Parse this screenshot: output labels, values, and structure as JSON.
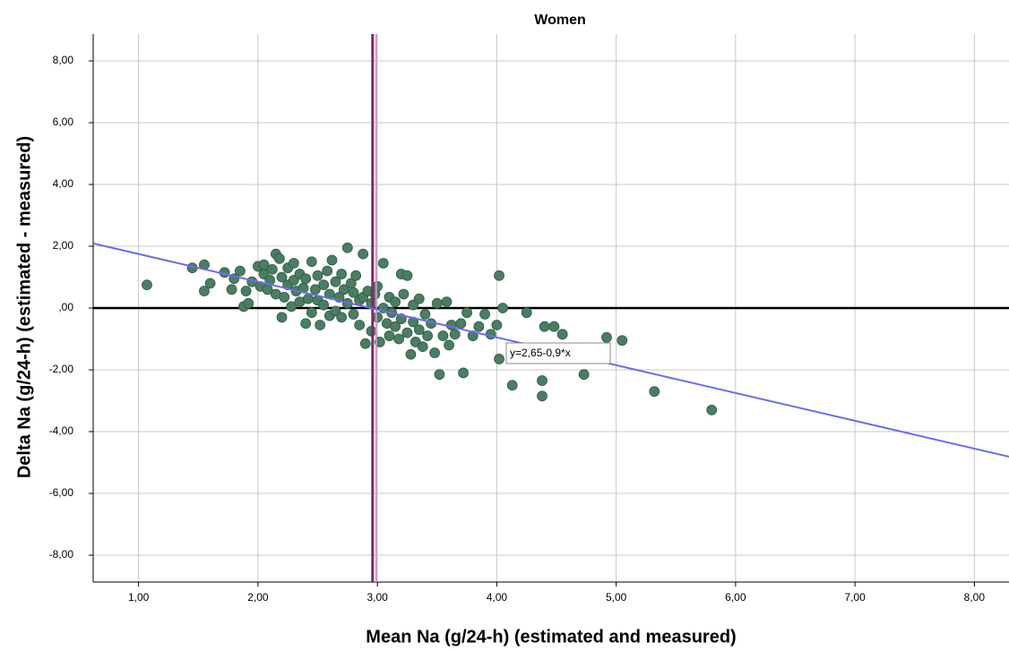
{
  "chart_data": {
    "type": "scatter",
    "title": "Women",
    "x_label": "Mean Na (g/24-h) (estimated  and measured)",
    "y_label": "Delta Na (g/24-h) (estimated - measured)",
    "xlim": [
      0.62,
      8.29
    ],
    "ylim": [
      -8.87,
      8.87
    ],
    "xticks": [
      {
        "value": 1,
        "label": "1,00"
      },
      {
        "value": 2,
        "label": "2,00"
      },
      {
        "value": 3,
        "label": "3,00"
      },
      {
        "value": 4,
        "label": "4,00"
      },
      {
        "value": 5,
        "label": "5,00"
      },
      {
        "value": 6,
        "label": "6,00"
      },
      {
        "value": 7,
        "label": "7,00"
      },
      {
        "value": 8,
        "label": "8,00"
      }
    ],
    "yticks": [
      {
        "value": -8,
        "label": "-8,00"
      },
      {
        "value": -6,
        "label": "-6,00"
      },
      {
        "value": -4,
        "label": "-4,00"
      },
      {
        "value": -2,
        "label": "-2,00"
      },
      {
        "value": 0,
        "label": ",00"
      },
      {
        "value": 2,
        "label": "2,00"
      },
      {
        "value": 4,
        "label": "4,00"
      },
      {
        "value": 6,
        "label": "6,00"
      },
      {
        "value": 8,
        "label": "8,00"
      }
    ],
    "grid": true,
    "series": [
      {
        "color": "#4b7d63",
        "x": [
          1.07,
          1.45,
          1.55,
          1.6,
          1.55,
          1.72,
          1.78,
          1.8,
          1.85,
          1.88,
          1.9,
          1.92,
          1.95,
          2.0,
          2.02,
          2.05,
          2.05,
          2.08,
          2.1,
          2.12,
          2.15,
          2.15,
          2.18,
          2.2,
          2.2,
          2.22,
          2.25,
          2.25,
          2.28,
          2.3,
          2.3,
          2.32,
          2.35,
          2.35,
          2.38,
          2.4,
          2.4,
          2.42,
          2.45,
          2.45,
          2.48,
          2.5,
          2.5,
          2.52,
          2.55,
          2.55,
          2.58,
          2.6,
          2.6,
          2.62,
          2.65,
          2.65,
          2.68,
          2.7,
          2.7,
          2.72,
          2.75,
          2.75,
          2.78,
          2.8,
          2.8,
          2.82,
          2.85,
          2.85,
          2.88,
          2.88,
          2.9,
          2.92,
          2.95,
          2.95,
          2.98,
          3.0,
          3.0,
          3.02,
          3.05,
          3.05,
          3.08,
          3.1,
          3.1,
          3.12,
          3.15,
          3.15,
          3.18,
          3.2,
          3.2,
          3.22,
          3.25,
          3.25,
          3.28,
          3.3,
          3.3,
          3.32,
          3.35,
          3.35,
          3.38,
          3.4,
          3.42,
          3.45,
          3.48,
          3.5,
          3.52,
          3.55,
          3.58,
          3.6,
          3.62,
          3.65,
          3.7,
          3.72,
          3.75,
          3.8,
          3.85,
          3.9,
          3.95,
          4.0,
          4.02,
          4.02,
          4.05,
          4.13,
          4.25,
          4.38,
          4.38,
          4.4,
          4.48,
          4.55,
          4.73,
          4.92,
          5.05,
          5.32,
          5.8
        ],
        "values": [
          0.75,
          1.3,
          1.4,
          0.8,
          0.55,
          1.15,
          0.6,
          0.95,
          1.2,
          0.05,
          0.55,
          0.15,
          0.85,
          1.35,
          0.7,
          1.1,
          1.4,
          0.6,
          0.9,
          1.25,
          1.75,
          0.45,
          1.6,
          -0.3,
          1.0,
          0.35,
          1.3,
          0.75,
          0.05,
          1.45,
          0.9,
          0.55,
          1.1,
          0.2,
          0.65,
          -0.5,
          0.95,
          0.3,
          1.5,
          -0.15,
          0.6,
          0.25,
          1.05,
          -0.55,
          0.75,
          0.1,
          1.2,
          0.45,
          -0.25,
          1.55,
          0.85,
          -0.1,
          0.35,
          1.1,
          -0.3,
          0.6,
          1.95,
          0.15,
          0.8,
          -0.2,
          0.5,
          1.05,
          0.25,
          -0.55,
          1.75,
          0.35,
          -1.15,
          0.55,
          0.15,
          -0.75,
          0.45,
          -0.3,
          0.7,
          -1.1,
          1.45,
          0.0,
          -0.5,
          0.35,
          -0.9,
          -0.15,
          -0.6,
          0.2,
          -1.0,
          1.1,
          -0.35,
          0.45,
          -0.8,
          1.05,
          -1.5,
          0.1,
          -0.45,
          -1.1,
          0.3,
          -0.7,
          -1.25,
          -0.2,
          -0.9,
          -0.5,
          -1.45,
          0.15,
          -2.15,
          -0.9,
          0.2,
          -1.2,
          -0.55,
          -0.85,
          -0.5,
          -2.1,
          -0.15,
          -0.9,
          -0.6,
          -0.2,
          -0.85,
          -0.55,
          1.05,
          -1.65,
          0.0,
          -2.5,
          -0.15,
          -2.85,
          -2.35,
          -0.6,
          -0.6,
          -0.85,
          -2.15,
          -0.95,
          -1.05,
          -2.7,
          -3.3
        ]
      }
    ],
    "fit": {
      "intercept": 2.65,
      "slope": -0.9,
      "color": "#6b6bef",
      "label": "y=2,65-0,9*x"
    },
    "vlines": [
      {
        "value": 2.96,
        "color": "#7a2b6e"
      },
      {
        "value": 2.99,
        "color": "#c99ac2"
      }
    ],
    "hlines": [
      {
        "value": 0,
        "color": "#000000"
      }
    ]
  }
}
